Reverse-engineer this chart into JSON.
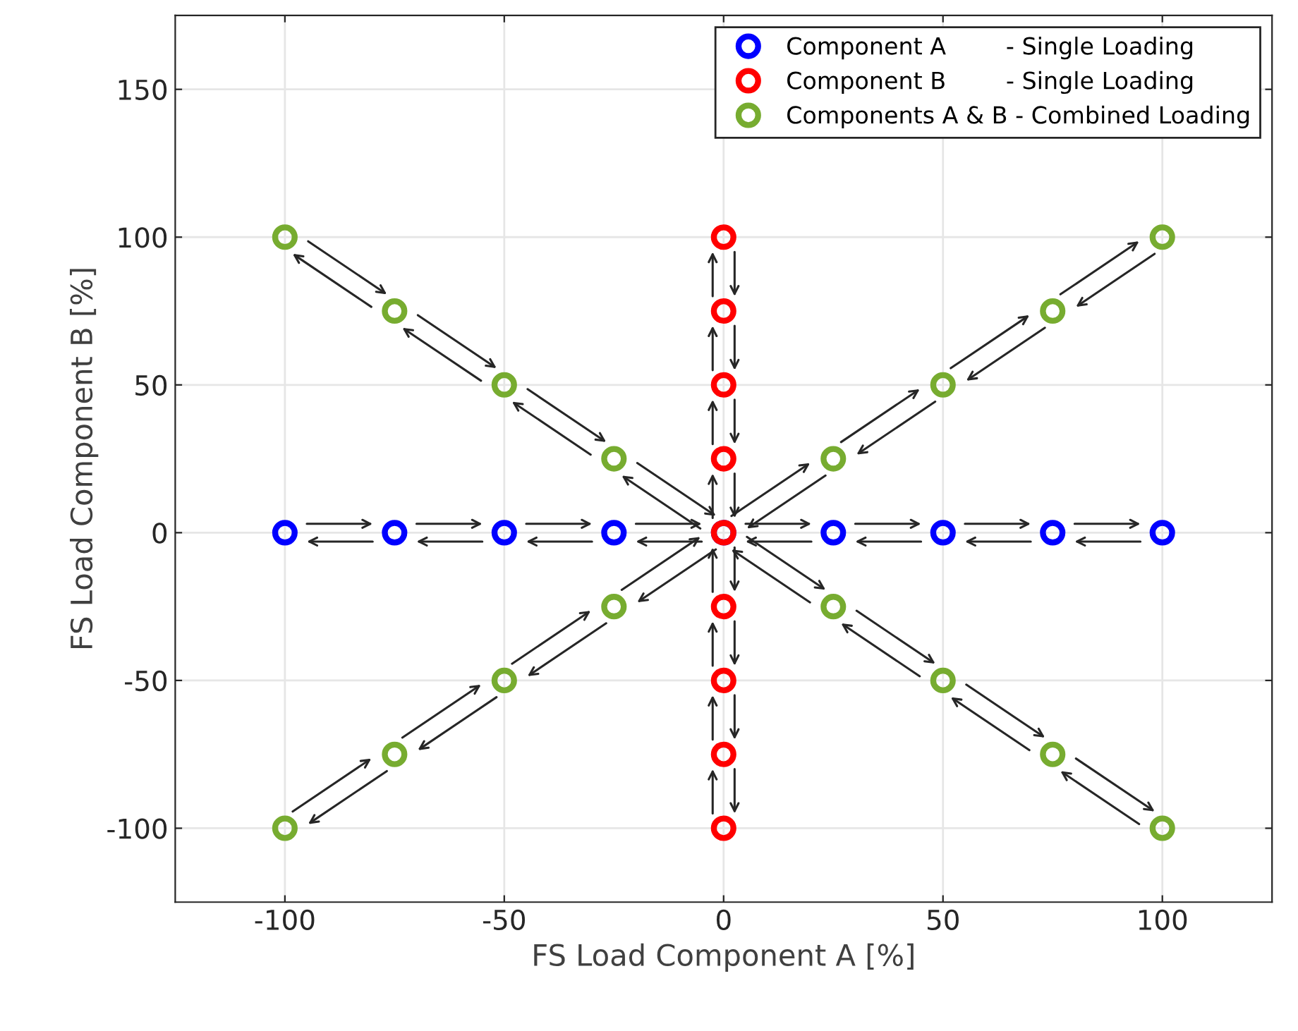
{
  "chart_data": {
    "type": "scatter",
    "xlabel": "FS Load Component A [%]",
    "ylabel": "FS Load Component B [%]",
    "series": [
      {
        "name": "Component A        - Single Loading",
        "color": "#0000ff",
        "x": [
          -100,
          -75,
          -50,
          -25,
          0,
          25,
          50,
          75,
          100
        ],
        "values": [
          0,
          0,
          0,
          0,
          0,
          0,
          0,
          0,
          0
        ]
      },
      {
        "name": "Component B        - Single Loading",
        "color": "#ff0000",
        "x": [
          0,
          0,
          0,
          0,
          0,
          0,
          0,
          0,
          0
        ],
        "values": [
          -100,
          -75,
          -50,
          -25,
          0,
          25,
          50,
          75,
          100
        ]
      },
      {
        "name": "Components A & B - Combined Loading",
        "color": "#77ac30",
        "x": [
          -100,
          -75,
          -50,
          -25,
          25,
          50,
          75,
          100,
          -100,
          -75,
          -50,
          -25,
          25,
          50,
          75,
          100
        ],
        "values": [
          100,
          75,
          50,
          25,
          -25,
          -50,
          -75,
          -100,
          -100,
          -75,
          -50,
          -25,
          25,
          50,
          75,
          100
        ]
      }
    ],
    "xlim": [
      -125,
      125
    ],
    "ylim": [
      -125,
      175
    ],
    "xticks": [
      -100,
      -50,
      0,
      50,
      100
    ],
    "yticks": [
      -100,
      -50,
      0,
      50,
      100,
      150
    ],
    "grid": true,
    "legend": "top right",
    "marker": "circle"
  }
}
